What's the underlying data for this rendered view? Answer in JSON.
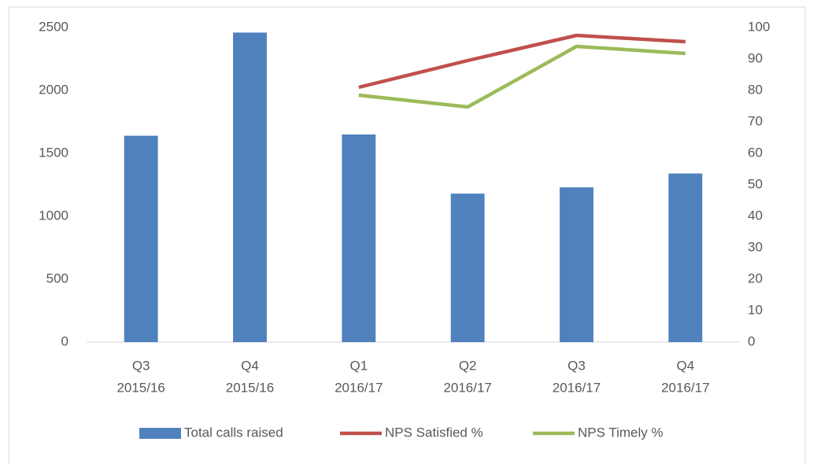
{
  "chart_data": {
    "type": "bar-line",
    "categories": [
      [
        "Q3",
        "2015/16"
      ],
      [
        "Q4",
        "2015/16"
      ],
      [
        "Q1",
        "2016/17"
      ],
      [
        "Q2",
        "2016/17"
      ],
      [
        "Q3",
        "2016/17"
      ],
      [
        "Q4",
        "2016/17"
      ]
    ],
    "series": [
      {
        "name": "Total calls raised",
        "color": "#4f81bd",
        "type": "bar",
        "values": [
          1640,
          2460,
          1650,
          1180,
          1230,
          1340
        ]
      },
      {
        "name": "NPS Satisfied %",
        "color": "#c0504d",
        "type": "line",
        "axis": "y2",
        "values": [
          null,
          null,
          81,
          89.5,
          97.5,
          95.5
        ]
      },
      {
        "name": "NPS Timely %",
        "color": "#9bbb59",
        "type": "line",
        "axis": "y2",
        "values": [
          null,
          null,
          78.5,
          74.75,
          94,
          91.75
        ]
      }
    ],
    "ylim": [
      0,
      2500
    ],
    "yticks": [
      0,
      500,
      1000,
      1500,
      2000,
      2500
    ],
    "y2lim": [
      0,
      100
    ],
    "y2ticks": [
      0,
      10,
      20,
      30,
      40,
      50,
      60,
      70,
      80,
      90,
      100
    ],
    "legend": "bottom"
  }
}
